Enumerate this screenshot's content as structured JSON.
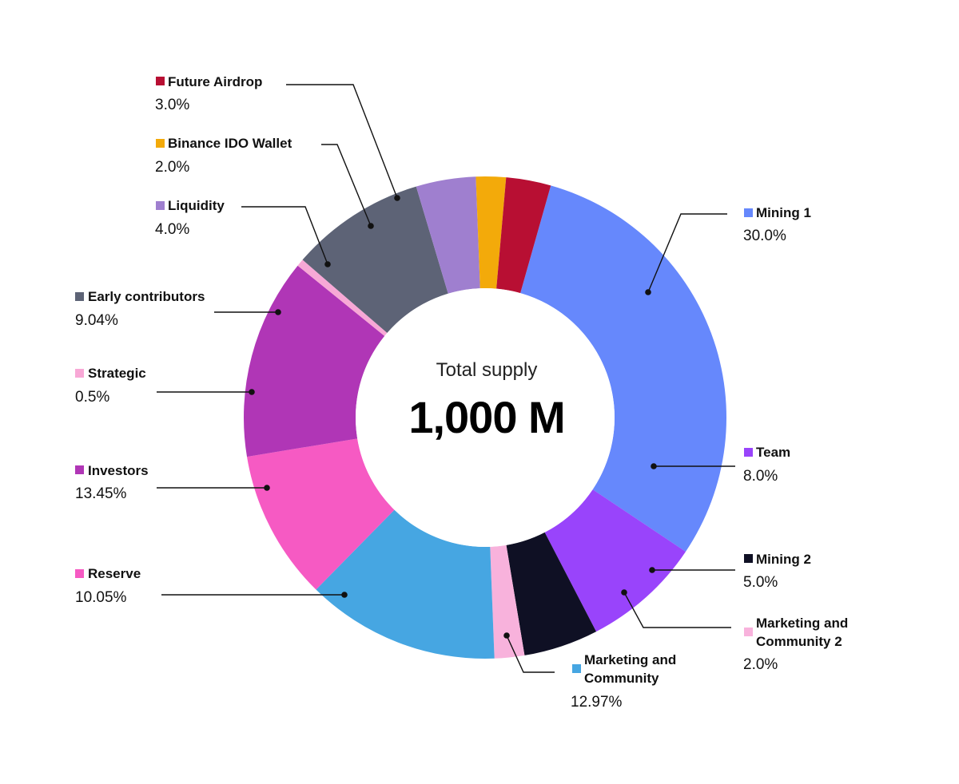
{
  "chart_data": {
    "type": "pie",
    "variant": "donut",
    "center": {
      "label": "Total supply",
      "value": "1,000 M"
    },
    "legend_placement": "callouts-around",
    "slices": [
      {
        "name": "Mining 1",
        "value": 30.0,
        "label": "30.0%",
        "color": "#6688fc"
      },
      {
        "name": "Team",
        "value": 8.0,
        "label": "8.0%",
        "color": "#9944fb"
      },
      {
        "name": "Mining 2",
        "value": 5.0,
        "label": "5.0%",
        "color": "#0f1024"
      },
      {
        "name": "Marketing and Community 2",
        "lines": [
          "Marketing and",
          "Community 2"
        ],
        "value": 2.0,
        "label": "2.0%",
        "color": "#f8b2dc"
      },
      {
        "name": "Marketing and Community",
        "lines": [
          "Marketing and",
          "Community"
        ],
        "value": 12.97,
        "label": "12.97%",
        "color": "#46a6e2"
      },
      {
        "name": "Reserve",
        "value": 10.05,
        "label": "10.05%",
        "color": "#f65ac3"
      },
      {
        "name": "Investors",
        "value": 13.45,
        "label": "13.45%",
        "color": "#b036b6"
      },
      {
        "name": "Strategic",
        "value": 0.5,
        "label": "0.5%",
        "color": "#f8a8d6"
      },
      {
        "name": "Early contributors",
        "value": 9.04,
        "label": "9.04%",
        "color": "#5d6376"
      },
      {
        "name": "Liquidity",
        "value": 4.0,
        "label": "4.0%",
        "color": "#9f7fcf"
      },
      {
        "name": "Binance IDO Wallet",
        "value": 2.0,
        "label": "2.0%",
        "color": "#f3aa0a"
      },
      {
        "name": "Future Airdrop",
        "value": 3.0,
        "label": "3.0%",
        "color": "#b80f33"
      }
    ]
  }
}
